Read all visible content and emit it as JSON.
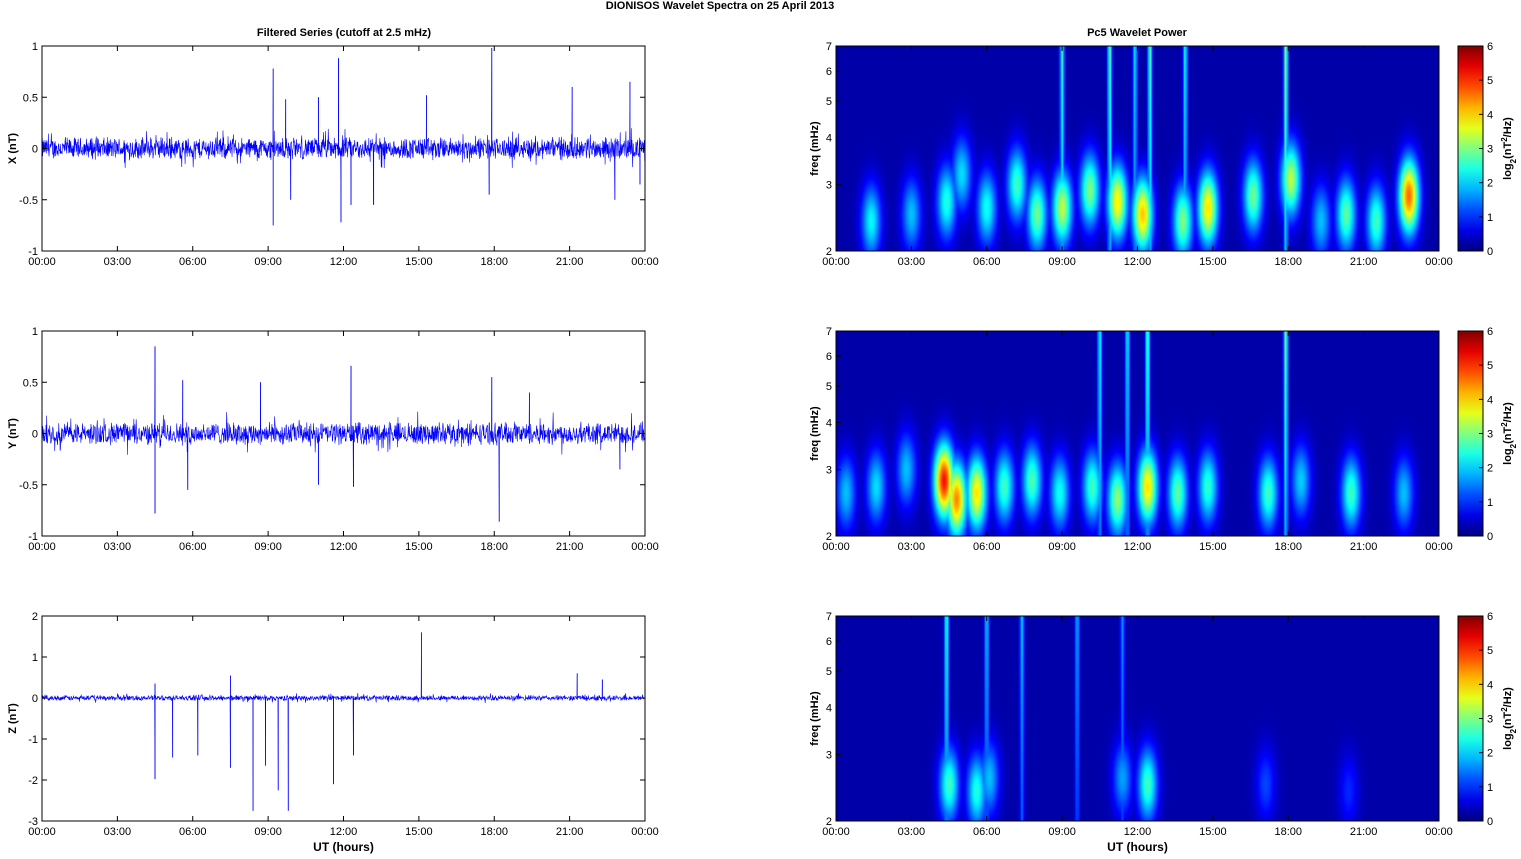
{
  "figure": {
    "title": "DIONISOS Wavelet Spectra on 25 April     2013",
    "left_column_title": "Filtered Series (cutoff at 2.5 mHz)",
    "right_column_title": "Pc5 Wavelet Power",
    "xlabel": "UT (hours)"
  },
  "colors": {
    "series_line": "#0000ff",
    "background": "#ffffff",
    "spectrogram_low": "#00008f",
    "spectrogram_high": "#800000"
  },
  "chart_data": [
    {
      "type": "line",
      "panel": "X",
      "title": "Filtered Series (cutoff at 2.5 mHz)",
      "xlabel": "",
      "ylabel": "X (nT)",
      "xlim": [
        0,
        24
      ],
      "ylim": [
        -1,
        1
      ],
      "x_tick_labels": [
        "00:00",
        "03:00",
        "06:00",
        "09:00",
        "12:00",
        "15:00",
        "18:00",
        "21:00",
        "00:00"
      ],
      "y_ticks": [
        -1,
        -0.5,
        0,
        0.5,
        1
      ],
      "noise_amplitude": 0.1,
      "spikes": [
        {
          "t": 9.2,
          "v": 0.78
        },
        {
          "t": 9.2,
          "v": -0.75
        },
        {
          "t": 9.7,
          "v": 0.48
        },
        {
          "t": 9.9,
          "v": -0.5
        },
        {
          "t": 11.0,
          "v": 0.5
        },
        {
          "t": 11.8,
          "v": 0.88
        },
        {
          "t": 11.9,
          "v": -0.72
        },
        {
          "t": 12.3,
          "v": -0.55
        },
        {
          "t": 13.2,
          "v": -0.55
        },
        {
          "t": 15.3,
          "v": 0.52
        },
        {
          "t": 17.9,
          "v": 0.98
        },
        {
          "t": 17.8,
          "v": -0.45
        },
        {
          "t": 21.1,
          "v": 0.6
        },
        {
          "t": 22.8,
          "v": -0.5
        },
        {
          "t": 23.4,
          "v": 0.65
        },
        {
          "t": 23.8,
          "v": -0.35
        }
      ]
    },
    {
      "type": "line",
      "panel": "Y",
      "title": "",
      "xlabel": "",
      "ylabel": "Y (nT)",
      "xlim": [
        0,
        24
      ],
      "ylim": [
        -1,
        1
      ],
      "x_tick_labels": [
        "00:00",
        "03:00",
        "06:00",
        "09:00",
        "12:00",
        "15:00",
        "18:00",
        "21:00",
        "00:00"
      ],
      "y_ticks": [
        -1,
        -0.5,
        0,
        0.5,
        1
      ],
      "noise_amplitude": 0.1,
      "spikes": [
        {
          "t": 4.5,
          "v": 0.85
        },
        {
          "t": 4.5,
          "v": -0.78
        },
        {
          "t": 5.6,
          "v": 0.52
        },
        {
          "t": 5.8,
          "v": -0.55
        },
        {
          "t": 8.7,
          "v": 0.5
        },
        {
          "t": 11.0,
          "v": -0.5
        },
        {
          "t": 12.3,
          "v": 0.66
        },
        {
          "t": 12.4,
          "v": -0.52
        },
        {
          "t": 17.9,
          "v": 0.55
        },
        {
          "t": 18.2,
          "v": -0.86
        },
        {
          "t": 19.4,
          "v": 0.4
        },
        {
          "t": 23.0,
          "v": -0.35
        }
      ]
    },
    {
      "type": "line",
      "panel": "Z",
      "title": "",
      "xlabel": "UT (hours)",
      "ylabel": "Z (nT)",
      "xlim": [
        0,
        24
      ],
      "ylim": [
        -3,
        2
      ],
      "x_tick_labels": [
        "00:00",
        "03:00",
        "06:00",
        "09:00",
        "12:00",
        "15:00",
        "18:00",
        "21:00",
        "00:00"
      ],
      "y_ticks": [
        -3,
        -2,
        -1,
        0,
        1,
        2
      ],
      "noise_amplitude": 0.06,
      "spikes": [
        {
          "t": 4.5,
          "v": -1.98
        },
        {
          "t": 4.5,
          "v": 0.35
        },
        {
          "t": 5.2,
          "v": -1.45
        },
        {
          "t": 6.2,
          "v": -1.4
        },
        {
          "t": 7.5,
          "v": -1.7
        },
        {
          "t": 7.5,
          "v": 0.55
        },
        {
          "t": 8.4,
          "v": -2.75
        },
        {
          "t": 8.9,
          "v": -1.65
        },
        {
          "t": 9.4,
          "v": -2.25
        },
        {
          "t": 9.8,
          "v": -2.75
        },
        {
          "t": 11.6,
          "v": -2.1
        },
        {
          "t": 12.4,
          "v": -1.4
        },
        {
          "t": 15.1,
          "v": 1.6
        },
        {
          "t": 21.3,
          "v": 0.6
        },
        {
          "t": 22.3,
          "v": 0.45
        }
      ]
    },
    {
      "type": "heatmap",
      "panel": "X-spectrum",
      "title": "Pc5 Wavelet Power",
      "xlabel": "",
      "ylabel": "freq (mHz)",
      "xlim": [
        0,
        24
      ],
      "ylim": [
        2,
        7
      ],
      "yscale": "log",
      "x_tick_labels": [
        "00:00",
        "03:00",
        "06:00",
        "09:00",
        "12:00",
        "15:00",
        "18:00",
        "21:00",
        "00:00"
      ],
      "y_ticks": [
        2,
        3,
        4,
        5,
        6,
        7
      ],
      "colorbar": {
        "label": "log2(nT2/Hz)",
        "range": [
          0,
          6
        ],
        "ticks": [
          0,
          1,
          2,
          3,
          4,
          5,
          6
        ]
      },
      "blobs": [
        {
          "t": 1.4,
          "f": 2.4,
          "p": 2.2
        },
        {
          "t": 3.0,
          "f": 2.5,
          "p": 1.8
        },
        {
          "t": 4.4,
          "f": 2.7,
          "p": 2.4
        },
        {
          "t": 5.0,
          "f": 3.2,
          "p": 2.0
        },
        {
          "t": 6.0,
          "f": 2.6,
          "p": 2.3
        },
        {
          "t": 7.2,
          "f": 3.0,
          "p": 2.6
        },
        {
          "t": 8.0,
          "f": 2.5,
          "p": 2.9
        },
        {
          "t": 9.0,
          "f": 2.6,
          "p": 3.4
        },
        {
          "t": 10.1,
          "f": 2.9,
          "p": 3.0
        },
        {
          "t": 11.2,
          "f": 2.7,
          "p": 3.9
        },
        {
          "t": 12.2,
          "f": 2.5,
          "p": 4.2
        },
        {
          "t": 13.8,
          "f": 2.4,
          "p": 3.0
        },
        {
          "t": 14.8,
          "f": 2.6,
          "p": 4.0
        },
        {
          "t": 16.6,
          "f": 2.8,
          "p": 2.9
        },
        {
          "t": 18.1,
          "f": 3.1,
          "p": 3.4
        },
        {
          "t": 19.3,
          "f": 2.4,
          "p": 1.8
        },
        {
          "t": 20.3,
          "f": 2.5,
          "p": 2.8
        },
        {
          "t": 21.5,
          "f": 2.4,
          "p": 2.6
        },
        {
          "t": 22.8,
          "f": 2.8,
          "p": 4.8
        }
      ],
      "streaks": [
        {
          "t": 9.0,
          "p": 2.6
        },
        {
          "t": 10.9,
          "p": 2.9
        },
        {
          "t": 11.9,
          "p": 2.2
        },
        {
          "t": 12.5,
          "p": 2.9
        },
        {
          "t": 13.9,
          "p": 2.4
        },
        {
          "t": 17.9,
          "p": 3.2
        }
      ]
    },
    {
      "type": "heatmap",
      "panel": "Y-spectrum",
      "title": "",
      "xlabel": "",
      "ylabel": "freq (mHz)",
      "xlim": [
        0,
        24
      ],
      "ylim": [
        2,
        7
      ],
      "yscale": "log",
      "x_tick_labels": [
        "00:00",
        "03:00",
        "06:00",
        "09:00",
        "12:00",
        "15:00",
        "18:00",
        "21:00",
        "00:00"
      ],
      "y_ticks": [
        2,
        3,
        4,
        5,
        6,
        7
      ],
      "colorbar": {
        "label": "log2(nT2/Hz)",
        "range": [
          0,
          6
        ],
        "ticks": [
          0,
          1,
          2,
          3,
          4,
          5,
          6
        ]
      },
      "blobs": [
        {
          "t": 0.4,
          "f": 2.6,
          "p": 1.8
        },
        {
          "t": 1.6,
          "f": 2.7,
          "p": 2.0
        },
        {
          "t": 2.8,
          "f": 3.0,
          "p": 1.8
        },
        {
          "t": 4.3,
          "f": 2.8,
          "p": 5.4
        },
        {
          "t": 4.8,
          "f": 2.5,
          "p": 4.6
        },
        {
          "t": 5.6,
          "f": 2.6,
          "p": 4.0
        },
        {
          "t": 6.7,
          "f": 2.7,
          "p": 2.6
        },
        {
          "t": 7.8,
          "f": 2.8,
          "p": 2.7
        },
        {
          "t": 8.9,
          "f": 2.6,
          "p": 2.3
        },
        {
          "t": 10.2,
          "f": 2.7,
          "p": 2.6
        },
        {
          "t": 11.2,
          "f": 2.5,
          "p": 3.1
        },
        {
          "t": 12.4,
          "f": 2.7,
          "p": 4.0
        },
        {
          "t": 13.6,
          "f": 2.6,
          "p": 2.8
        },
        {
          "t": 14.8,
          "f": 2.7,
          "p": 2.5
        },
        {
          "t": 17.2,
          "f": 2.6,
          "p": 2.6
        },
        {
          "t": 18.5,
          "f": 2.8,
          "p": 1.9
        },
        {
          "t": 20.5,
          "f": 2.6,
          "p": 2.6
        },
        {
          "t": 22.6,
          "f": 2.6,
          "p": 1.8
        }
      ],
      "streaks": [
        {
          "t": 10.5,
          "p": 2.4
        },
        {
          "t": 11.6,
          "p": 2.3
        },
        {
          "t": 12.4,
          "p": 2.8
        },
        {
          "t": 17.9,
          "p": 3.0
        }
      ]
    },
    {
      "type": "heatmap",
      "panel": "Z-spectrum",
      "title": "",
      "xlabel": "UT (hours)",
      "ylabel": "freq (mHz)",
      "xlim": [
        0,
        24
      ],
      "ylim": [
        2,
        7
      ],
      "yscale": "log",
      "x_tick_labels": [
        "00:00",
        "03:00",
        "06:00",
        "09:00",
        "12:00",
        "15:00",
        "18:00",
        "21:00",
        "00:00"
      ],
      "y_ticks": [
        2,
        3,
        4,
        5,
        6,
        7
      ],
      "colorbar": {
        "label": "log2(nT2/Hz)",
        "range": [
          0,
          6
        ],
        "ticks": [
          0,
          1,
          2,
          3,
          4,
          5,
          6
        ]
      },
      "blobs": [
        {
          "t": 4.5,
          "f": 2.5,
          "p": 2.6
        },
        {
          "t": 5.6,
          "f": 2.4,
          "p": 2.4
        },
        {
          "t": 6.1,
          "f": 2.6,
          "p": 1.8
        },
        {
          "t": 11.4,
          "f": 2.6,
          "p": 1.6
        },
        {
          "t": 12.4,
          "f": 2.5,
          "p": 2.6
        },
        {
          "t": 17.1,
          "f": 2.5,
          "p": 1.0
        },
        {
          "t": 20.4,
          "f": 2.4,
          "p": 0.8
        }
      ],
      "streaks": [
        {
          "t": 4.4,
          "p": 2.6
        },
        {
          "t": 6.0,
          "p": 2.0
        },
        {
          "t": 7.4,
          "p": 2.0
        },
        {
          "t": 9.6,
          "p": 1.8
        },
        {
          "t": 11.4,
          "p": 1.6
        }
      ]
    }
  ]
}
